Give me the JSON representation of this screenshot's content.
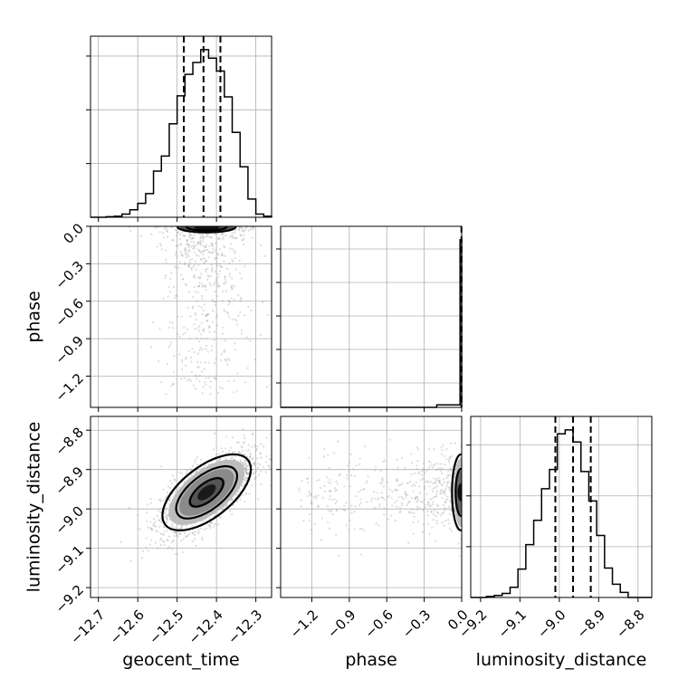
{
  "chart_data": {
    "type": "corner",
    "parameters": [
      "geocent_time",
      "phase",
      "luminosity_distance"
    ],
    "axes": {
      "geocent_time": {
        "range": [
          -12.72,
          -12.26
        ],
        "ticks": [
          -12.7,
          -12.6,
          -12.5,
          -12.4,
          -12.3
        ],
        "tick_labels": [
          "−12.7",
          "−12.6",
          "−12.5",
          "−12.4",
          "−12.3"
        ]
      },
      "phase": {
        "range": [
          -1.45,
          0.0
        ],
        "ticks": [
          -1.2,
          -0.9,
          -0.6,
          -0.3,
          0.0
        ],
        "tick_labels": [
          "−1.2",
          "−0.9",
          "−0.6",
          "−0.3",
          "0.0"
        ]
      },
      "luminosity_distance": {
        "range": [
          -9.225,
          -8.765
        ],
        "ticks": [
          -9.2,
          -9.1,
          -9.0,
          -8.9,
          -8.8
        ],
        "tick_labels": [
          "−9.2",
          "−9.1",
          "−9.0",
          "−8.9",
          "−8.8"
        ]
      }
    },
    "histograms": {
      "geocent_time": {
        "edges": [
          -12.72,
          -12.7,
          -12.68,
          -12.66,
          -12.64,
          -12.62,
          -12.6,
          -12.58,
          -12.56,
          -12.54,
          -12.52,
          -12.5,
          -12.48,
          -12.46,
          -12.44,
          -12.42,
          -12.4,
          -12.38,
          -12.36,
          -12.34,
          -12.32,
          -12.3,
          -12.28,
          -12.26
        ],
        "counts": [
          0,
          0,
          0.5,
          1,
          3,
          7,
          13,
          22,
          43,
          57,
          87,
          113,
          133,
          144,
          156,
          148,
          136,
          112,
          79,
          47,
          17,
          3,
          1
        ],
        "quantiles": [
          -12.483,
          -12.433,
          -12.39
        ]
      },
      "phase": {
        "edges": [
          -1.45,
          -0.2,
          -0.013,
          0.0
        ],
        "counts": [
          0,
          1.5,
          100
        ],
        "quantiles": [
          -0.002
        ]
      },
      "luminosity_distance": {
        "edges": [
          -9.225,
          -9.205,
          -9.185,
          -9.165,
          -9.145,
          -9.125,
          -9.105,
          -9.085,
          -9.065,
          -9.045,
          -9.025,
          -9.005,
          -8.985,
          -8.965,
          -8.945,
          -8.925,
          -8.905,
          -8.885,
          -8.865,
          -8.845,
          -8.825,
          -8.805,
          -8.785,
          -8.765
        ],
        "counts": [
          0,
          0,
          1,
          2,
          4,
          10,
          28,
          52,
          76,
          107,
          126,
          161,
          165,
          153,
          124,
          95,
          61,
          29,
          13,
          5,
          0,
          0,
          0
        ],
        "quantiles": [
          -9.01,
          -8.965,
          -8.92
        ]
      }
    },
    "joint": {
      "geocent_time_vs_luminosity_distance": {
        "mean": [
          -12.425,
          -8.958
        ],
        "std": [
          0.058,
          0.052
        ],
        "correlation": 0.68
      },
      "geocent_time_vs_phase": {
        "phase_mode": -0.005
      },
      "phase_vs_luminosity_distance": {
        "phase_mode": -0.005
      }
    }
  }
}
